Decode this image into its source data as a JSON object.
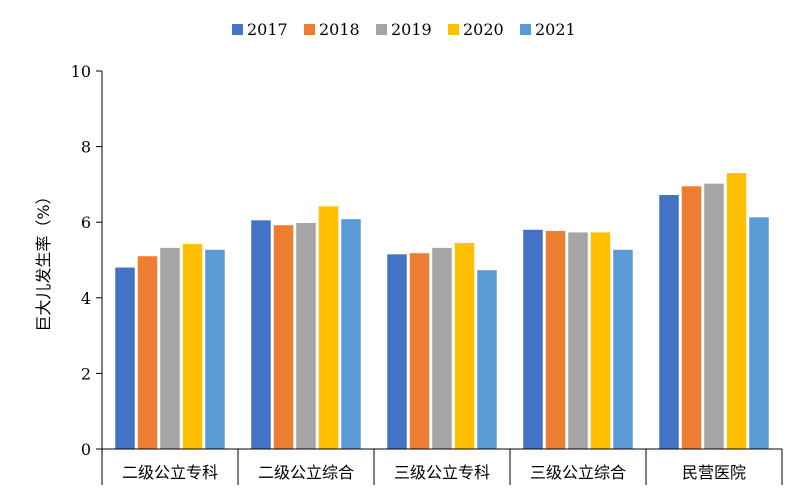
{
  "chart_data": {
    "type": "bar",
    "categories": [
      "二级公立专科",
      "二级公立综合",
      "三级公立专科",
      "三级公立综合",
      "民营医院"
    ],
    "series": [
      {
        "name": "2017",
        "color": "#4472C4",
        "values": [
          4.8,
          6.05,
          5.15,
          5.8,
          6.72
        ]
      },
      {
        "name": "2018",
        "color": "#ED7D31",
        "values": [
          5.1,
          5.92,
          5.18,
          5.77,
          6.95
        ]
      },
      {
        "name": "2019",
        "color": "#A5A5A5",
        "values": [
          5.32,
          5.98,
          5.32,
          5.73,
          7.02
        ]
      },
      {
        "name": "2020",
        "color": "#FFC000",
        "values": [
          5.42,
          6.42,
          5.45,
          5.73,
          7.3
        ]
      },
      {
        "name": "2021",
        "color": "#5B9BD5",
        "values": [
          5.27,
          6.08,
          4.73,
          5.27,
          6.13
        ]
      }
    ],
    "ylabel": "巨大儿发生率（%）",
    "ylim": [
      0,
      10
    ],
    "yticks": [
      "0",
      "2",
      "4",
      "6",
      "8",
      "10"
    ],
    "grid": false,
    "legend_position": "top"
  }
}
